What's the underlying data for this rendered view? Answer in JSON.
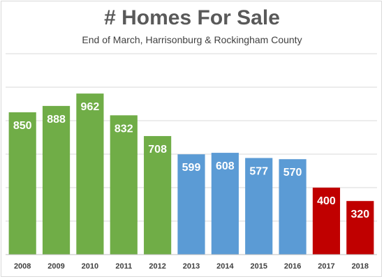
{
  "chart_data": {
    "type": "bar",
    "title": "# Homes For Sale",
    "subtitle": "End of March, Harrisonburg & Rockingham County",
    "xlabel": "",
    "ylabel": "",
    "categories": [
      "2008",
      "2009",
      "2010",
      "2011",
      "2012",
      "2013",
      "2014",
      "2015",
      "2016",
      "2017",
      "2018"
    ],
    "values": [
      850,
      888,
      962,
      832,
      708,
      599,
      608,
      577,
      570,
      400,
      320
    ],
    "bar_colors": [
      "#70ad47",
      "#70ad47",
      "#70ad47",
      "#70ad47",
      "#70ad47",
      "#5b9bd5",
      "#5b9bd5",
      "#5b9bd5",
      "#5b9bd5",
      "#c00000",
      "#c00000"
    ],
    "ylim": [
      0,
      1200
    ],
    "grid": true,
    "y_tick_labels_shown": false,
    "legend": "none"
  }
}
